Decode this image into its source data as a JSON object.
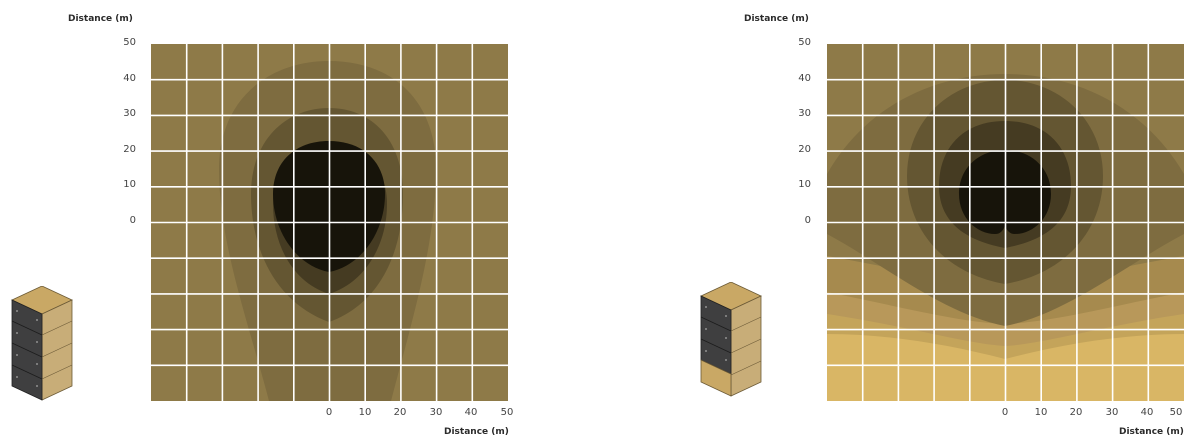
{
  "panels": [
    {
      "y_axis_title": "Distance (m)",
      "x_axis_title": "Distance (m)",
      "y_ticks": [
        "50",
        "40",
        "30",
        "20",
        "10",
        "0"
      ],
      "x_ticks": [
        "0",
        "10",
        "20",
        "30",
        "40",
        "50"
      ],
      "colors": {
        "background": "#8e7a48",
        "levels": [
          "#7e6c40",
          "#645632",
          "#453b22",
          "#17140a"
        ]
      }
    },
    {
      "y_axis_title": "Distance (m)",
      "x_axis_title": "Distance (m)",
      "y_ticks": [
        "50",
        "40",
        "30",
        "20",
        "10",
        "0"
      ],
      "x_ticks": [
        "0",
        "10",
        "20",
        "30",
        "40",
        "50"
      ],
      "colors": {
        "background": "#8e7a48",
        "levels": [
          "#d9b665",
          "#c4a45a",
          "#a68a4e",
          "#7e6c40",
          "#645632",
          "#453b22",
          "#17140a"
        ]
      }
    }
  ]
}
